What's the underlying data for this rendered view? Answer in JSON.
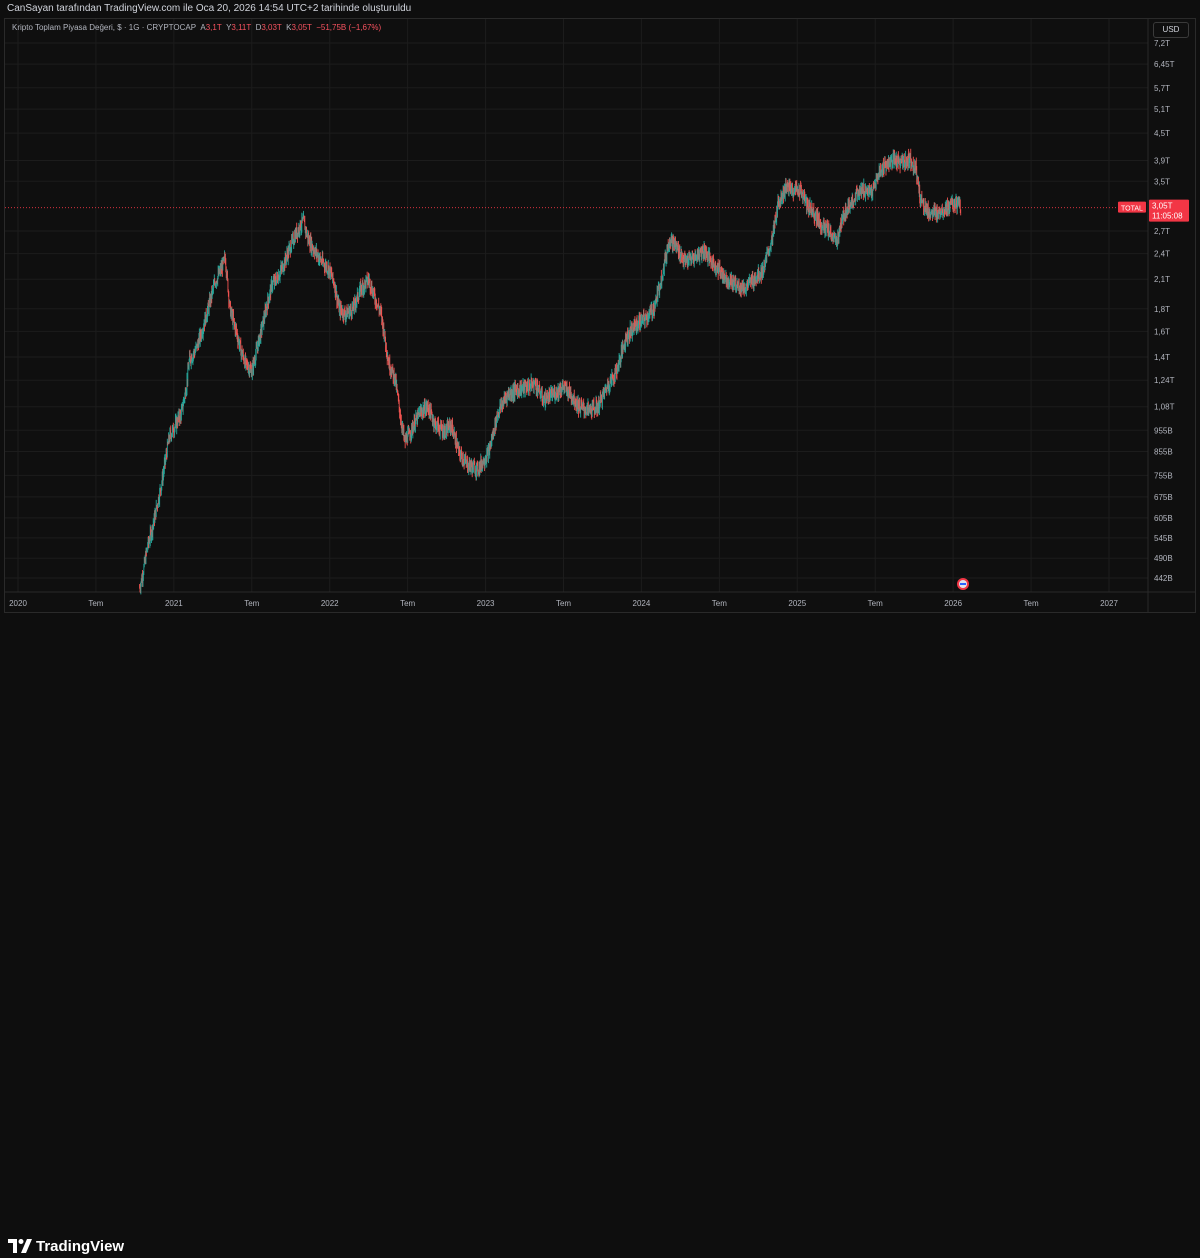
{
  "header": {
    "credit": "CanSayan tarafından TradingView.com ile Oca 20, 2026 14:54 UTC+2 tarihinde oluşturuldu"
  },
  "legend": {
    "title": "Kripto Toplam Piyasa Değeri, $ · 1G · CRYPTOCAP",
    "open_label": "A",
    "open": "3,1T",
    "high_label": "Y",
    "high": "3,11T",
    "low_label": "D",
    "low": "3,03T",
    "close_label": "K",
    "close": "3,05T",
    "change": "−51,75B (−1,67%)"
  },
  "currency_button": "USD",
  "price_tag": {
    "symbol": "TOTAL",
    "value": "3,05T",
    "countdown": "11:05:08"
  },
  "brand": {
    "name": "TradingView"
  },
  "colors": {
    "up": "#26a69a",
    "down": "#ef5350",
    "background": "#0f0f0f",
    "grid": "#1c1c1c",
    "axis_text": "#b2b5be",
    "current_price": "#f23645"
  },
  "chart_data": {
    "type": "candlestick",
    "scale": "log",
    "title": "Kripto Toplam Piyasa Değeri",
    "symbol": "CRYPTOCAP:TOTAL",
    "interval": "1G",
    "current_price_trillions": 3.05,
    "y_ticks": [
      {
        "v": 7.2,
        "label": "7,2T"
      },
      {
        "v": 6.45,
        "label": "6,45T"
      },
      {
        "v": 5.7,
        "label": "5,7T"
      },
      {
        "v": 5.1,
        "label": "5,1T"
      },
      {
        "v": 4.5,
        "label": "4,5T"
      },
      {
        "v": 3.9,
        "label": "3,9T"
      },
      {
        "v": 3.5,
        "label": "3,5T"
      },
      {
        "v": 2.7,
        "label": "2,7T"
      },
      {
        "v": 2.4,
        "label": "2,4T"
      },
      {
        "v": 2.1,
        "label": "2,1T"
      },
      {
        "v": 1.8,
        "label": "1,8T"
      },
      {
        "v": 1.6,
        "label": "1,6T"
      },
      {
        "v": 1.4,
        "label": "1,4T"
      },
      {
        "v": 1.24,
        "label": "1,24T"
      },
      {
        "v": 1.08,
        "label": "1,08T"
      },
      {
        "v": 0.955,
        "label": "955B"
      },
      {
        "v": 0.855,
        "label": "855B"
      },
      {
        "v": 0.755,
        "label": "755B"
      },
      {
        "v": 0.675,
        "label": "675B"
      },
      {
        "v": 0.605,
        "label": "605B"
      },
      {
        "v": 0.545,
        "label": "545B"
      },
      {
        "v": 0.49,
        "label": "490B"
      },
      {
        "v": 0.442,
        "label": "442B"
      }
    ],
    "x_ticks": [
      {
        "t": 2020.0,
        "label": "2020"
      },
      {
        "t": 2020.5,
        "label": "Tem"
      },
      {
        "t": 2021.0,
        "label": "2021"
      },
      {
        "t": 2021.5,
        "label": "Tem"
      },
      {
        "t": 2022.0,
        "label": "2022"
      },
      {
        "t": 2022.5,
        "label": "Tem"
      },
      {
        "t": 2023.0,
        "label": "2023"
      },
      {
        "t": 2023.5,
        "label": "Tem"
      },
      {
        "t": 2024.0,
        "label": "2024"
      },
      {
        "t": 2024.5,
        "label": "Tem"
      },
      {
        "t": 2025.0,
        "label": "2025"
      },
      {
        "t": 2025.5,
        "label": "Tem"
      },
      {
        "t": 2026.0,
        "label": "2026"
      },
      {
        "t": 2026.5,
        "label": "Tem"
      },
      {
        "t": 2027.0,
        "label": "2027"
      }
    ],
    "series": [
      {
        "name": "TOTAL",
        "points": [
          [
            2020.78,
            0.42
          ],
          [
            2020.8,
            0.45
          ],
          [
            2020.83,
            0.52
          ],
          [
            2020.86,
            0.57
          ],
          [
            2020.92,
            0.72
          ],
          [
            2020.97,
            0.92
          ],
          [
            2021.02,
            1.0
          ],
          [
            2021.05,
            1.05
          ],
          [
            2021.08,
            1.2
          ],
          [
            2021.1,
            1.38
          ],
          [
            2021.14,
            1.45
          ],
          [
            2021.18,
            1.6
          ],
          [
            2021.22,
            1.8
          ],
          [
            2021.26,
            2.05
          ],
          [
            2021.3,
            2.2
          ],
          [
            2021.33,
            2.35
          ],
          [
            2021.36,
            1.8
          ],
          [
            2021.4,
            1.6
          ],
          [
            2021.43,
            1.45
          ],
          [
            2021.46,
            1.35
          ],
          [
            2021.5,
            1.3
          ],
          [
            2021.55,
            1.55
          ],
          [
            2021.6,
            1.85
          ],
          [
            2021.63,
            2.05
          ],
          [
            2021.66,
            2.1
          ],
          [
            2021.7,
            2.25
          ],
          [
            2021.74,
            2.45
          ],
          [
            2021.78,
            2.65
          ],
          [
            2021.83,
            2.85
          ],
          [
            2021.86,
            2.6
          ],
          [
            2021.9,
            2.45
          ],
          [
            2021.95,
            2.3
          ],
          [
            2022.0,
            2.2
          ],
          [
            2022.03,
            2.05
          ],
          [
            2022.06,
            1.8
          ],
          [
            2022.1,
            1.75
          ],
          [
            2022.15,
            1.8
          ],
          [
            2022.2,
            2.0
          ],
          [
            2022.25,
            2.1
          ],
          [
            2022.28,
            1.95
          ],
          [
            2022.33,
            1.75
          ],
          [
            2022.38,
            1.35
          ],
          [
            2022.42,
            1.25
          ],
          [
            2022.45,
            1.05
          ],
          [
            2022.48,
            0.9
          ],
          [
            2022.52,
            0.95
          ],
          [
            2022.58,
            1.05
          ],
          [
            2022.63,
            1.08
          ],
          [
            2022.68,
            0.98
          ],
          [
            2022.74,
            0.95
          ],
          [
            2022.78,
            0.98
          ],
          [
            2022.83,
            0.85
          ],
          [
            2022.88,
            0.8
          ],
          [
            2022.95,
            0.78
          ],
          [
            2023.02,
            0.85
          ],
          [
            2023.08,
            1.05
          ],
          [
            2023.14,
            1.15
          ],
          [
            2023.2,
            1.18
          ],
          [
            2023.27,
            1.2
          ],
          [
            2023.32,
            1.22
          ],
          [
            2023.37,
            1.12
          ],
          [
            2023.43,
            1.15
          ],
          [
            2023.5,
            1.2
          ],
          [
            2023.55,
            1.15
          ],
          [
            2023.6,
            1.08
          ],
          [
            2023.66,
            1.06
          ],
          [
            2023.72,
            1.08
          ],
          [
            2023.78,
            1.2
          ],
          [
            2023.84,
            1.3
          ],
          [
            2023.9,
            1.55
          ],
          [
            2023.96,
            1.65
          ],
          [
            2024.03,
            1.72
          ],
          [
            2024.08,
            1.8
          ],
          [
            2024.12,
            2.05
          ],
          [
            2024.18,
            2.6
          ],
          [
            2024.22,
            2.5
          ],
          [
            2024.28,
            2.3
          ],
          [
            2024.34,
            2.35
          ],
          [
            2024.4,
            2.45
          ],
          [
            2024.45,
            2.3
          ],
          [
            2024.5,
            2.2
          ],
          [
            2024.55,
            2.1
          ],
          [
            2024.6,
            2.05
          ],
          [
            2024.66,
            2.0
          ],
          [
            2024.72,
            2.1
          ],
          [
            2024.78,
            2.2
          ],
          [
            2024.84,
            2.6
          ],
          [
            2024.88,
            3.15
          ],
          [
            2024.93,
            3.4
          ],
          [
            2024.97,
            3.35
          ],
          [
            2025.02,
            3.35
          ],
          [
            2025.06,
            3.1
          ],
          [
            2025.1,
            3.0
          ],
          [
            2025.15,
            2.8
          ],
          [
            2025.2,
            2.7
          ],
          [
            2025.25,
            2.55
          ],
          [
            2025.3,
            2.95
          ],
          [
            2025.36,
            3.2
          ],
          [
            2025.42,
            3.35
          ],
          [
            2025.48,
            3.3
          ],
          [
            2025.53,
            3.7
          ],
          [
            2025.58,
            3.85
          ],
          [
            2025.63,
            3.9
          ],
          [
            2025.68,
            3.85
          ],
          [
            2025.72,
            3.95
          ],
          [
            2025.76,
            3.75
          ],
          [
            2025.79,
            3.2
          ],
          [
            2025.82,
            3.05
          ],
          [
            2025.86,
            2.95
          ],
          [
            2025.9,
            2.98
          ],
          [
            2025.95,
            3.05
          ],
          [
            2026.0,
            3.1
          ],
          [
            2026.03,
            3.1
          ],
          [
            2026.05,
            3.05
          ]
        ]
      }
    ]
  }
}
